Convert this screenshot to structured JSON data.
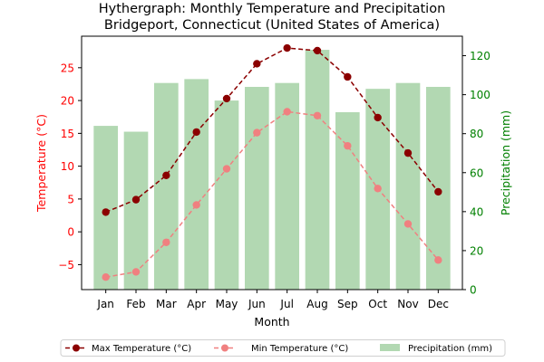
{
  "chart_data": {
    "type": "bar-line",
    "title_line1": "Hythergraph: Monthly Temperature and Precipitation",
    "title_line2": "Bridgeport, Connecticut (United States of America)",
    "xlabel": "Month",
    "ylabel_left": "Temperature (°C)",
    "ylabel_right": "Precipitation (mm)",
    "categories": [
      "Jan",
      "Feb",
      "Mar",
      "Apr",
      "May",
      "Jun",
      "Jul",
      "Aug",
      "Sep",
      "Oct",
      "Nov",
      "Dec"
    ],
    "y_left": {
      "min": -8.8,
      "max": 29.8,
      "ticks": [
        -5,
        0,
        5,
        10,
        15,
        20,
        25
      ]
    },
    "y_right": {
      "min": 0,
      "max": 130,
      "ticks": [
        0,
        20,
        40,
        60,
        80,
        100,
        120
      ]
    },
    "series": [
      {
        "name": "Max Temperature (°C)",
        "axis": "left",
        "kind": "line",
        "color": "#8b0000",
        "values": [
          3.0,
          4.9,
          8.6,
          15.2,
          20.3,
          25.6,
          28.0,
          27.6,
          23.6,
          17.4,
          12.0,
          6.1
        ]
      },
      {
        "name": "Min Temperature (°C)",
        "axis": "left",
        "kind": "line",
        "color": "#f08080",
        "values": [
          -6.9,
          -6.1,
          -1.6,
          4.1,
          9.6,
          15.1,
          18.3,
          17.7,
          13.1,
          6.6,
          1.2,
          -4.3
        ]
      },
      {
        "name": "Precipitation (mm)",
        "axis": "right",
        "kind": "bar",
        "color": "#b2d8b2",
        "values": [
          84,
          81,
          106,
          108,
          97,
          104,
          106,
          123,
          91,
          103,
          106,
          104
        ]
      }
    ],
    "legend_position": "bottom-center",
    "colors": {
      "left_axis": "#ff0000",
      "right_axis": "#008000"
    }
  }
}
